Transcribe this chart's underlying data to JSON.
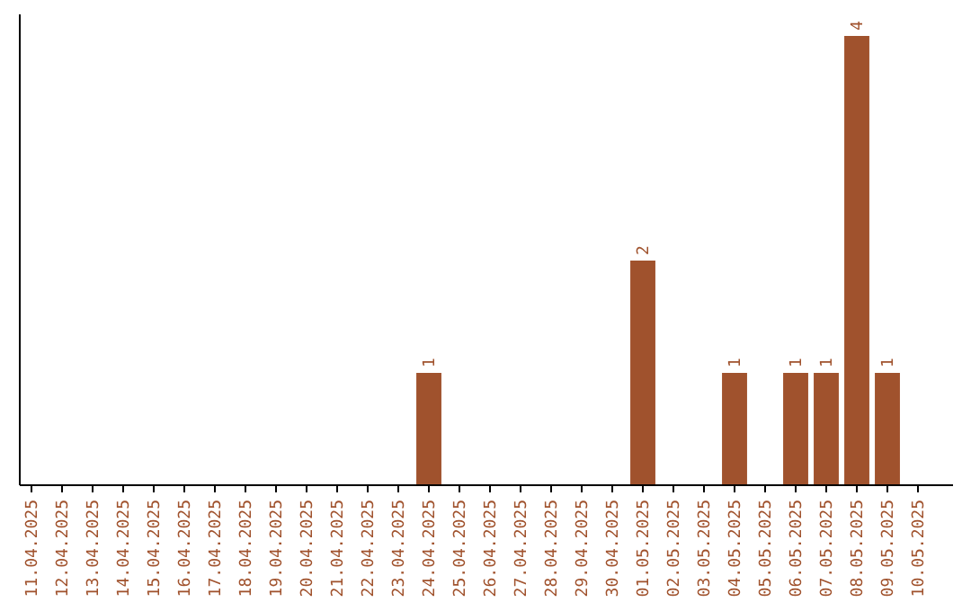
{
  "chart_data": {
    "type": "bar",
    "categories": [
      "11.04.2025",
      "12.04.2025",
      "13.04.2025",
      "14.04.2025",
      "15.04.2025",
      "16.04.2025",
      "17.04.2025",
      "18.04.2025",
      "19.04.2025",
      "20.04.2025",
      "21.04.2025",
      "22.04.2025",
      "23.04.2025",
      "24.04.2025",
      "25.04.2025",
      "26.04.2025",
      "27.04.2025",
      "28.04.2025",
      "29.04.2025",
      "30.04.2025",
      "01.05.2025",
      "02.05.2025",
      "03.05.2025",
      "04.05.2025",
      "05.05.2025",
      "06.05.2025",
      "07.05.2025",
      "08.05.2025",
      "09.05.2025",
      "10.05.2025"
    ],
    "values": [
      null,
      null,
      null,
      null,
      null,
      null,
      null,
      null,
      null,
      null,
      null,
      null,
      null,
      1,
      null,
      null,
      null,
      null,
      null,
      null,
      2,
      null,
      null,
      1,
      null,
      1,
      1,
      4,
      1,
      null
    ],
    "data_labels": true,
    "color": "#a0522d",
    "tick_labels": "x"
  }
}
